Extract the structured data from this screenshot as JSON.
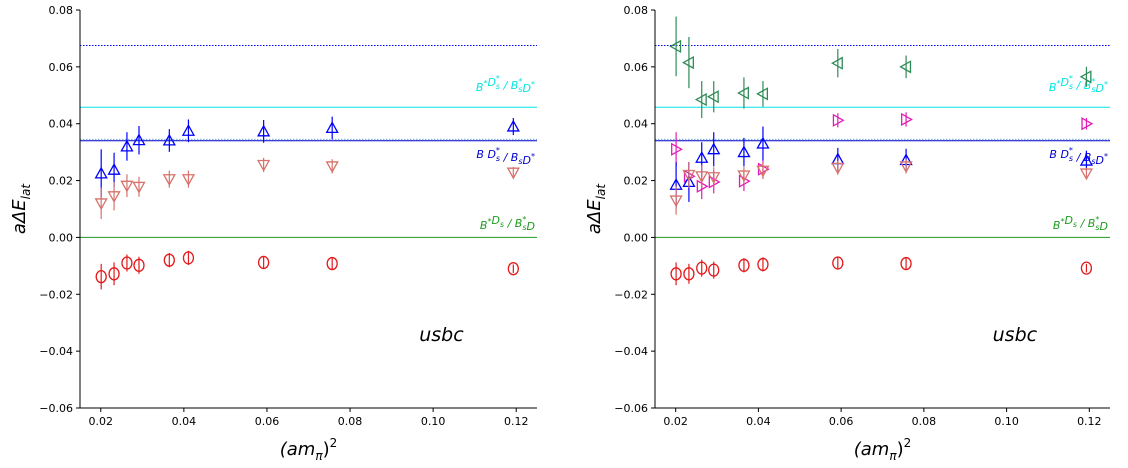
{
  "chart_data": [
    {
      "type": "scatter",
      "panel": "left",
      "xlabel_base": "(am",
      "xlabel_sub": "π",
      "xlabel_close": ")",
      "xlabel_sup": "2",
      "ylabel_base": "aΔE",
      "ylabel_sub": "lat",
      "xlim": [
        0.015,
        0.125
      ],
      "ylim": [
        -0.06,
        0.08
      ],
      "xticks": [
        0.02,
        0.04,
        0.06,
        0.08,
        0.1,
        0.12
      ],
      "xtick_labels": [
        "0.02",
        "0.04",
        "0.06",
        "0.08",
        "0.10",
        "0.12"
      ],
      "yticks": [
        -0.06,
        -0.04,
        -0.02,
        0.0,
        0.02,
        0.04,
        0.06,
        0.08
      ],
      "ytick_labels": [
        "−0.06",
        "−0.04",
        "−0.02",
        "0.00",
        "0.02",
        "0.04",
        "0.06",
        "0.08"
      ],
      "annotation": "usbc",
      "hlines": [
        {
          "y": 0.0675,
          "color": "#0000ff",
          "style": "dotted"
        },
        {
          "y": 0.0458,
          "color": "#00e5e5",
          "style": "solid"
        },
        {
          "y": 0.0345,
          "color": "#6fa8dc",
          "style": "dotted"
        },
        {
          "y": 0.034,
          "color": "#0000cc",
          "style": "solid"
        },
        {
          "y": 0.0,
          "color": "#1f9a1f",
          "style": "solid"
        }
      ],
      "line_labels": [
        {
          "y": 0.0515,
          "color": "#00e5e5",
          "label": "B*D*s / B*sD*"
        },
        {
          "y": 0.028,
          "color": "#0000cc",
          "label": "B D*s / BsD*"
        },
        {
          "y": 0.003,
          "color": "#1f9a1f",
          "label": "B*Ds / B*sD"
        }
      ],
      "series": [
        {
          "marker": "triangle-up",
          "color": "#0000ff",
          "x": [
            0.0201,
            0.0232,
            0.0263,
            0.0292,
            0.0365,
            0.0411,
            0.0592,
            0.0757,
            0.1193
          ],
          "y": [
            0.0225,
            0.0238,
            0.032,
            0.0342,
            0.0341,
            0.0375,
            0.0373,
            0.0385,
            0.039
          ],
          "err": [
            0.0085,
            0.006,
            0.005,
            0.005,
            0.004,
            0.004,
            0.004,
            0.004,
            0.003
          ]
        },
        {
          "marker": "triangle-down",
          "color": "#d6726a",
          "x": [
            0.0201,
            0.0232,
            0.0263,
            0.0292,
            0.0365,
            0.0411,
            0.0592,
            0.0757,
            0.1193
          ],
          "y": [
            0.012,
            0.0145,
            0.0182,
            0.0178,
            0.0205,
            0.0205,
            0.0255,
            0.025,
            0.0228
          ],
          "err": [
            0.0055,
            0.005,
            0.004,
            0.0035,
            0.003,
            0.003,
            0.0025,
            0.0025,
            0.002
          ]
        },
        {
          "marker": "circle",
          "color": "#e41a1c",
          "x": [
            0.0201,
            0.0232,
            0.0263,
            0.0292,
            0.0365,
            0.0411,
            0.0592,
            0.0757,
            0.1193
          ],
          "y": [
            -0.0138,
            -0.0128,
            -0.009,
            -0.0098,
            -0.008,
            -0.0072,
            -0.0088,
            -0.0092,
            -0.011
          ],
          "err": [
            0.0045,
            0.004,
            0.003,
            0.003,
            0.0025,
            0.0025,
            0.002,
            0.002,
            0.0015
          ]
        }
      ]
    },
    {
      "type": "scatter",
      "panel": "right",
      "xlabel_base": "(am",
      "xlabel_sub": "π",
      "xlabel_close": ")",
      "xlabel_sup": "2",
      "ylabel_base": "aΔE",
      "ylabel_sub": "lat",
      "xlim": [
        0.015,
        0.125
      ],
      "ylim": [
        -0.06,
        0.08
      ],
      "xticks": [
        0.02,
        0.04,
        0.06,
        0.08,
        0.1,
        0.12
      ],
      "xtick_labels": [
        "0.02",
        "0.04",
        "0.06",
        "0.08",
        "0.10",
        "0.12"
      ],
      "yticks": [
        -0.06,
        -0.04,
        -0.02,
        0.0,
        0.02,
        0.04,
        0.06,
        0.08
      ],
      "ytick_labels": [
        "−0.06",
        "−0.04",
        "−0.02",
        "0.00",
        "0.02",
        "0.04",
        "0.06",
        "0.08"
      ],
      "annotation": "usbc",
      "hlines": [
        {
          "y": 0.0675,
          "color": "#0000ff",
          "style": "dotted"
        },
        {
          "y": 0.0458,
          "color": "#00e5e5",
          "style": "solid"
        },
        {
          "y": 0.0345,
          "color": "#6fa8dc",
          "style": "dotted"
        },
        {
          "y": 0.034,
          "color": "#0000cc",
          "style": "solid"
        },
        {
          "y": 0.0,
          "color": "#1f9a1f",
          "style": "solid"
        }
      ],
      "line_labels": [
        {
          "y": 0.0515,
          "color": "#00e5e5",
          "label": "B*D*s / B*sD*"
        },
        {
          "y": 0.028,
          "color": "#0000cc",
          "label": "B D*s / BsD*"
        },
        {
          "y": 0.003,
          "color": "#1f9a1f",
          "label": "B*Ds / B*sD"
        }
      ],
      "series": [
        {
          "marker": "triangle-left",
          "color": "#2e8b57",
          "x": [
            0.0201,
            0.0232,
            0.0263,
            0.0292,
            0.0365,
            0.0411,
            0.0592,
            0.0757,
            0.1193
          ],
          "y": [
            0.0672,
            0.0615,
            0.0485,
            0.0495,
            0.0508,
            0.0505,
            0.0613,
            0.06,
            0.0565
          ],
          "err": [
            0.0105,
            0.009,
            0.0065,
            0.0055,
            0.0055,
            0.0045,
            0.005,
            0.004,
            0.0035
          ]
        },
        {
          "marker": "triangle-right",
          "color": "#e21bb6",
          "x": [
            0.0201,
            0.0232,
            0.0263,
            0.0292,
            0.0365,
            0.0411,
            0.0592,
            0.0757,
            0.1193
          ],
          "y": [
            0.031,
            0.0215,
            0.018,
            0.0195,
            0.0198,
            0.024,
            0.0412,
            0.0415,
            0.04
          ],
          "err": [
            0.006,
            0.005,
            0.0045,
            0.004,
            0.0035,
            0.003,
            0.0025,
            0.0025,
            0.002
          ]
        },
        {
          "marker": "triangle-up",
          "color": "#0000ff",
          "x": [
            0.0201,
            0.0232,
            0.0263,
            0.0292,
            0.0365,
            0.0411,
            0.0592,
            0.0757,
            0.1193
          ],
          "y": [
            0.0185,
            0.0195,
            0.028,
            0.031,
            0.03,
            0.033,
            0.0275,
            0.0272,
            0.027
          ],
          "err": [
            0.008,
            0.007,
            0.0055,
            0.006,
            0.005,
            0.006,
            0.004,
            0.004,
            0.0035
          ]
        },
        {
          "marker": "triangle-down",
          "color": "#d6726a",
          "x": [
            0.0201,
            0.0232,
            0.0263,
            0.0292,
            0.0365,
            0.0411,
            0.0592,
            0.0757,
            0.1193
          ],
          "y": [
            0.013,
            0.022,
            0.0215,
            0.0212,
            0.0218,
            0.0235,
            0.0245,
            0.025,
            0.0225
          ],
          "err": [
            0.005,
            0.0045,
            0.004,
            0.0035,
            0.003,
            0.003,
            0.0025,
            0.0025,
            0.002
          ]
        },
        {
          "marker": "circle",
          "color": "#e41a1c",
          "x": [
            0.0201,
            0.0232,
            0.0263,
            0.0292,
            0.0365,
            0.0411,
            0.0592,
            0.0757,
            0.1193
          ],
          "y": [
            -0.0128,
            -0.0128,
            -0.0108,
            -0.0115,
            -0.0098,
            -0.0095,
            -0.009,
            -0.0092,
            -0.0108
          ],
          "err": [
            0.004,
            0.0035,
            0.003,
            0.003,
            0.0025,
            0.0025,
            0.002,
            0.002,
            0.0015
          ]
        }
      ]
    }
  ]
}
